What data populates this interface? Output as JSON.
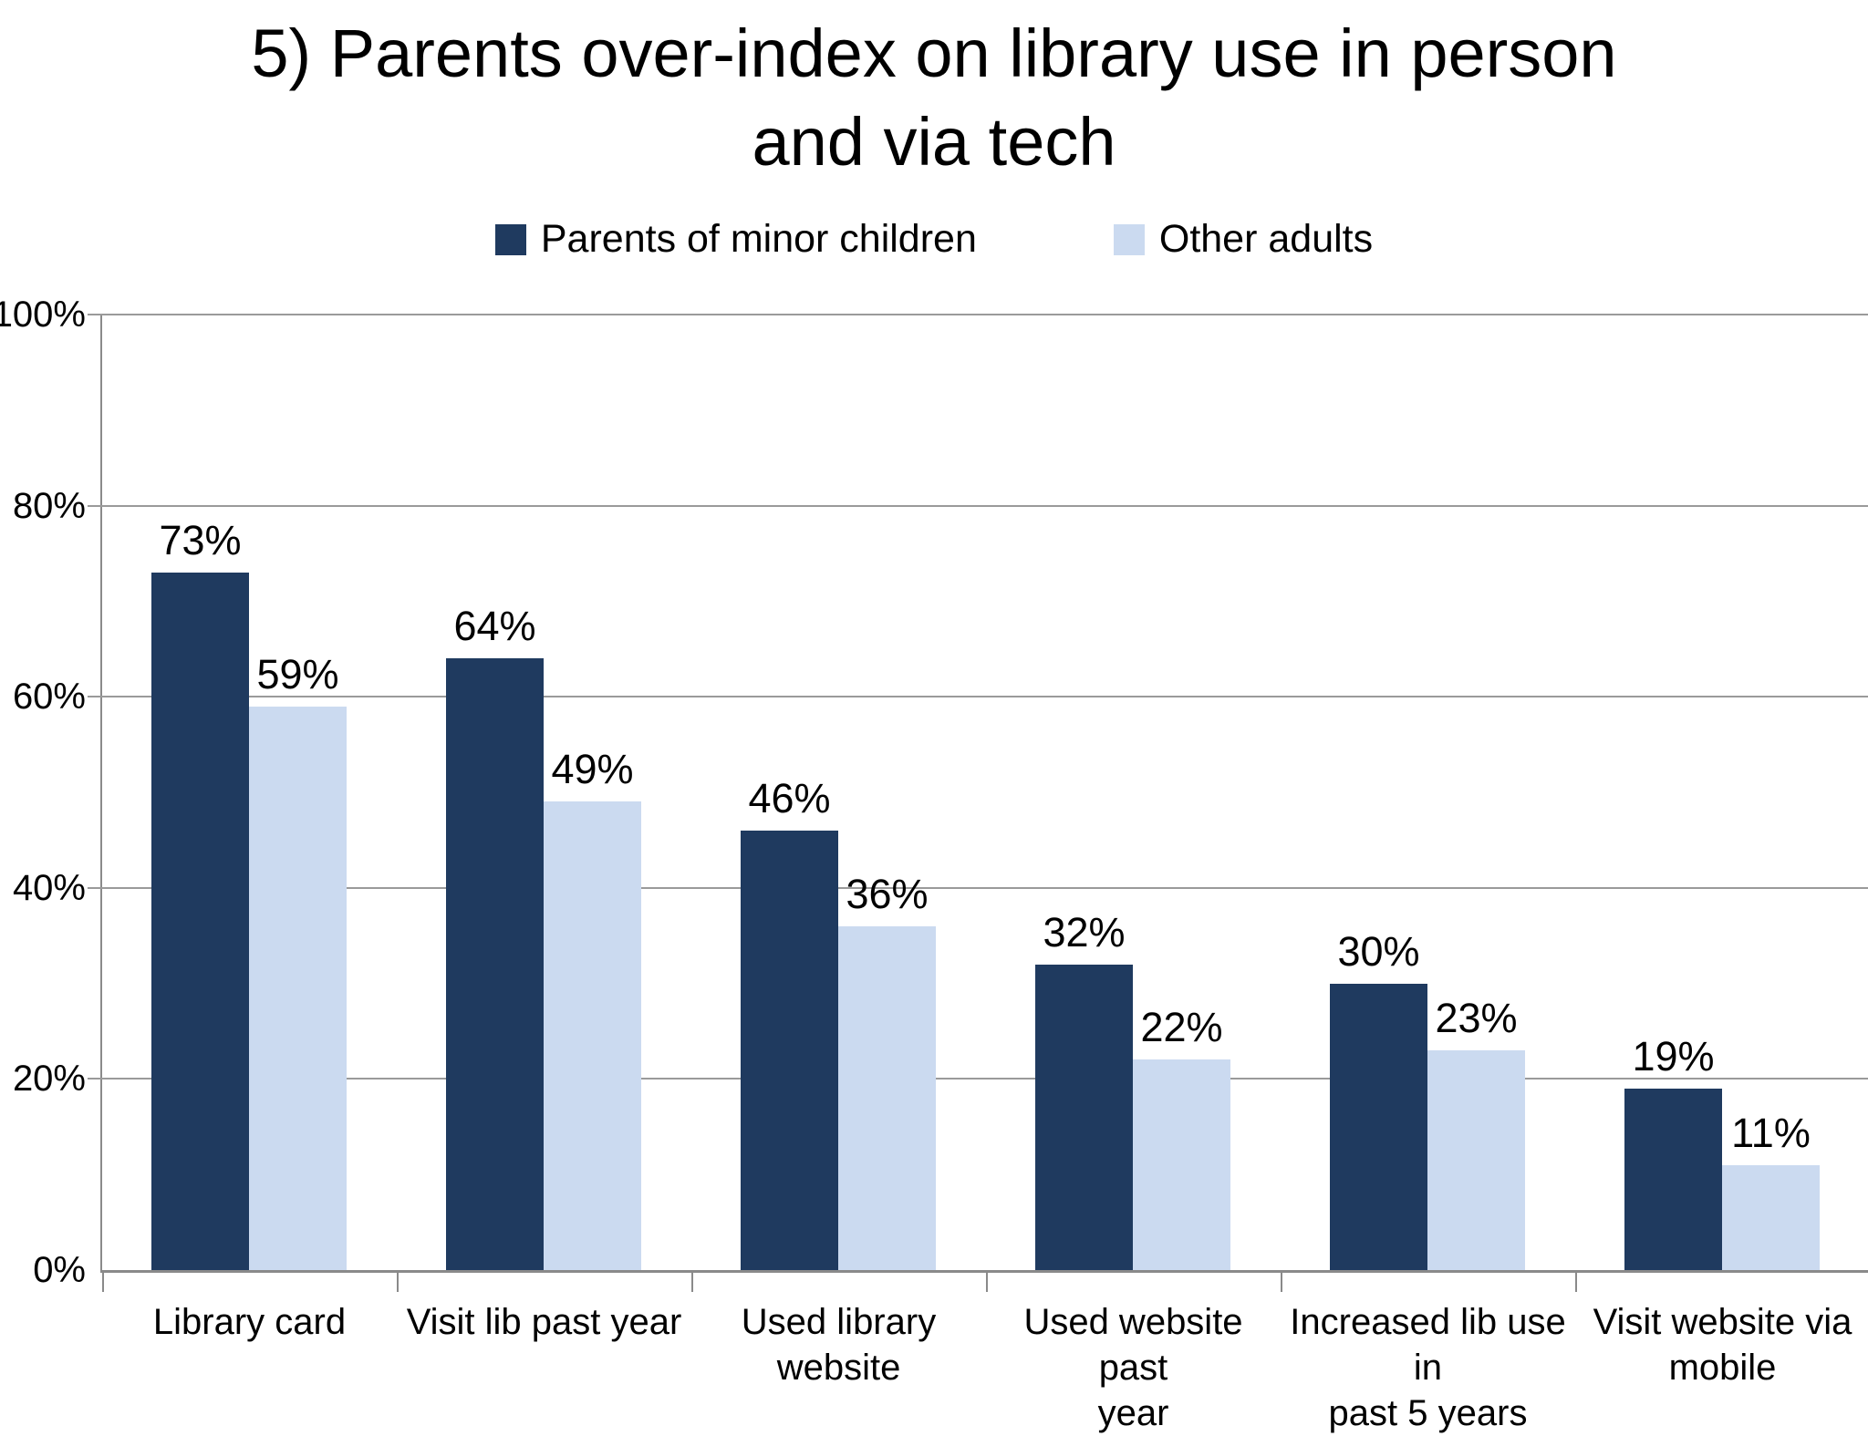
{
  "title": {
    "line1": "5) Parents over-index on library use in person",
    "line2": "and via tech"
  },
  "legend": {
    "items": [
      {
        "label": "Parents of minor children",
        "color": "#1F3A5F"
      },
      {
        "label": "Other adults",
        "color": "#CBDAF0"
      }
    ]
  },
  "colors": {
    "series_dark": "#1F3A5F",
    "series_light": "#CBDAF0",
    "gridline": "#9A9A9A",
    "axis": "#8A8A8A",
    "text": "#000000",
    "background": "#FFFFFF"
  },
  "chart_data": {
    "type": "bar",
    "title": "5) Parents over-index on library use in person and via tech",
    "categories": [
      "Library card",
      "Visit lib past year",
      "Used library website",
      "Used website past year",
      "Increased lib use in past 5 years",
      "Visit website via mobile"
    ],
    "category_display_lines": [
      [
        "Library card"
      ],
      [
        "Visit lib past year"
      ],
      [
        "Used library",
        "website"
      ],
      [
        "Used website past",
        "year"
      ],
      [
        "Increased lib use in",
        "past 5 years"
      ],
      [
        "Visit website via",
        "mobile"
      ]
    ],
    "series": [
      {
        "name": "Parents of minor children",
        "color": "#1F3A5F",
        "values": [
          73,
          64,
          46,
          32,
          30,
          19
        ]
      },
      {
        "name": "Other adults",
        "color": "#CBDAF0",
        "values": [
          59,
          49,
          36,
          22,
          23,
          11
        ]
      }
    ],
    "data_labels": true,
    "value_suffix": "%",
    "xlabel": "",
    "ylabel": "",
    "ylim": [
      0,
      100
    ],
    "ytick_step": 20,
    "ytick_labels": [
      "0%",
      "20%",
      "40%",
      "60%",
      "80%",
      "100%"
    ],
    "grid": true,
    "legend_position": "top"
  }
}
